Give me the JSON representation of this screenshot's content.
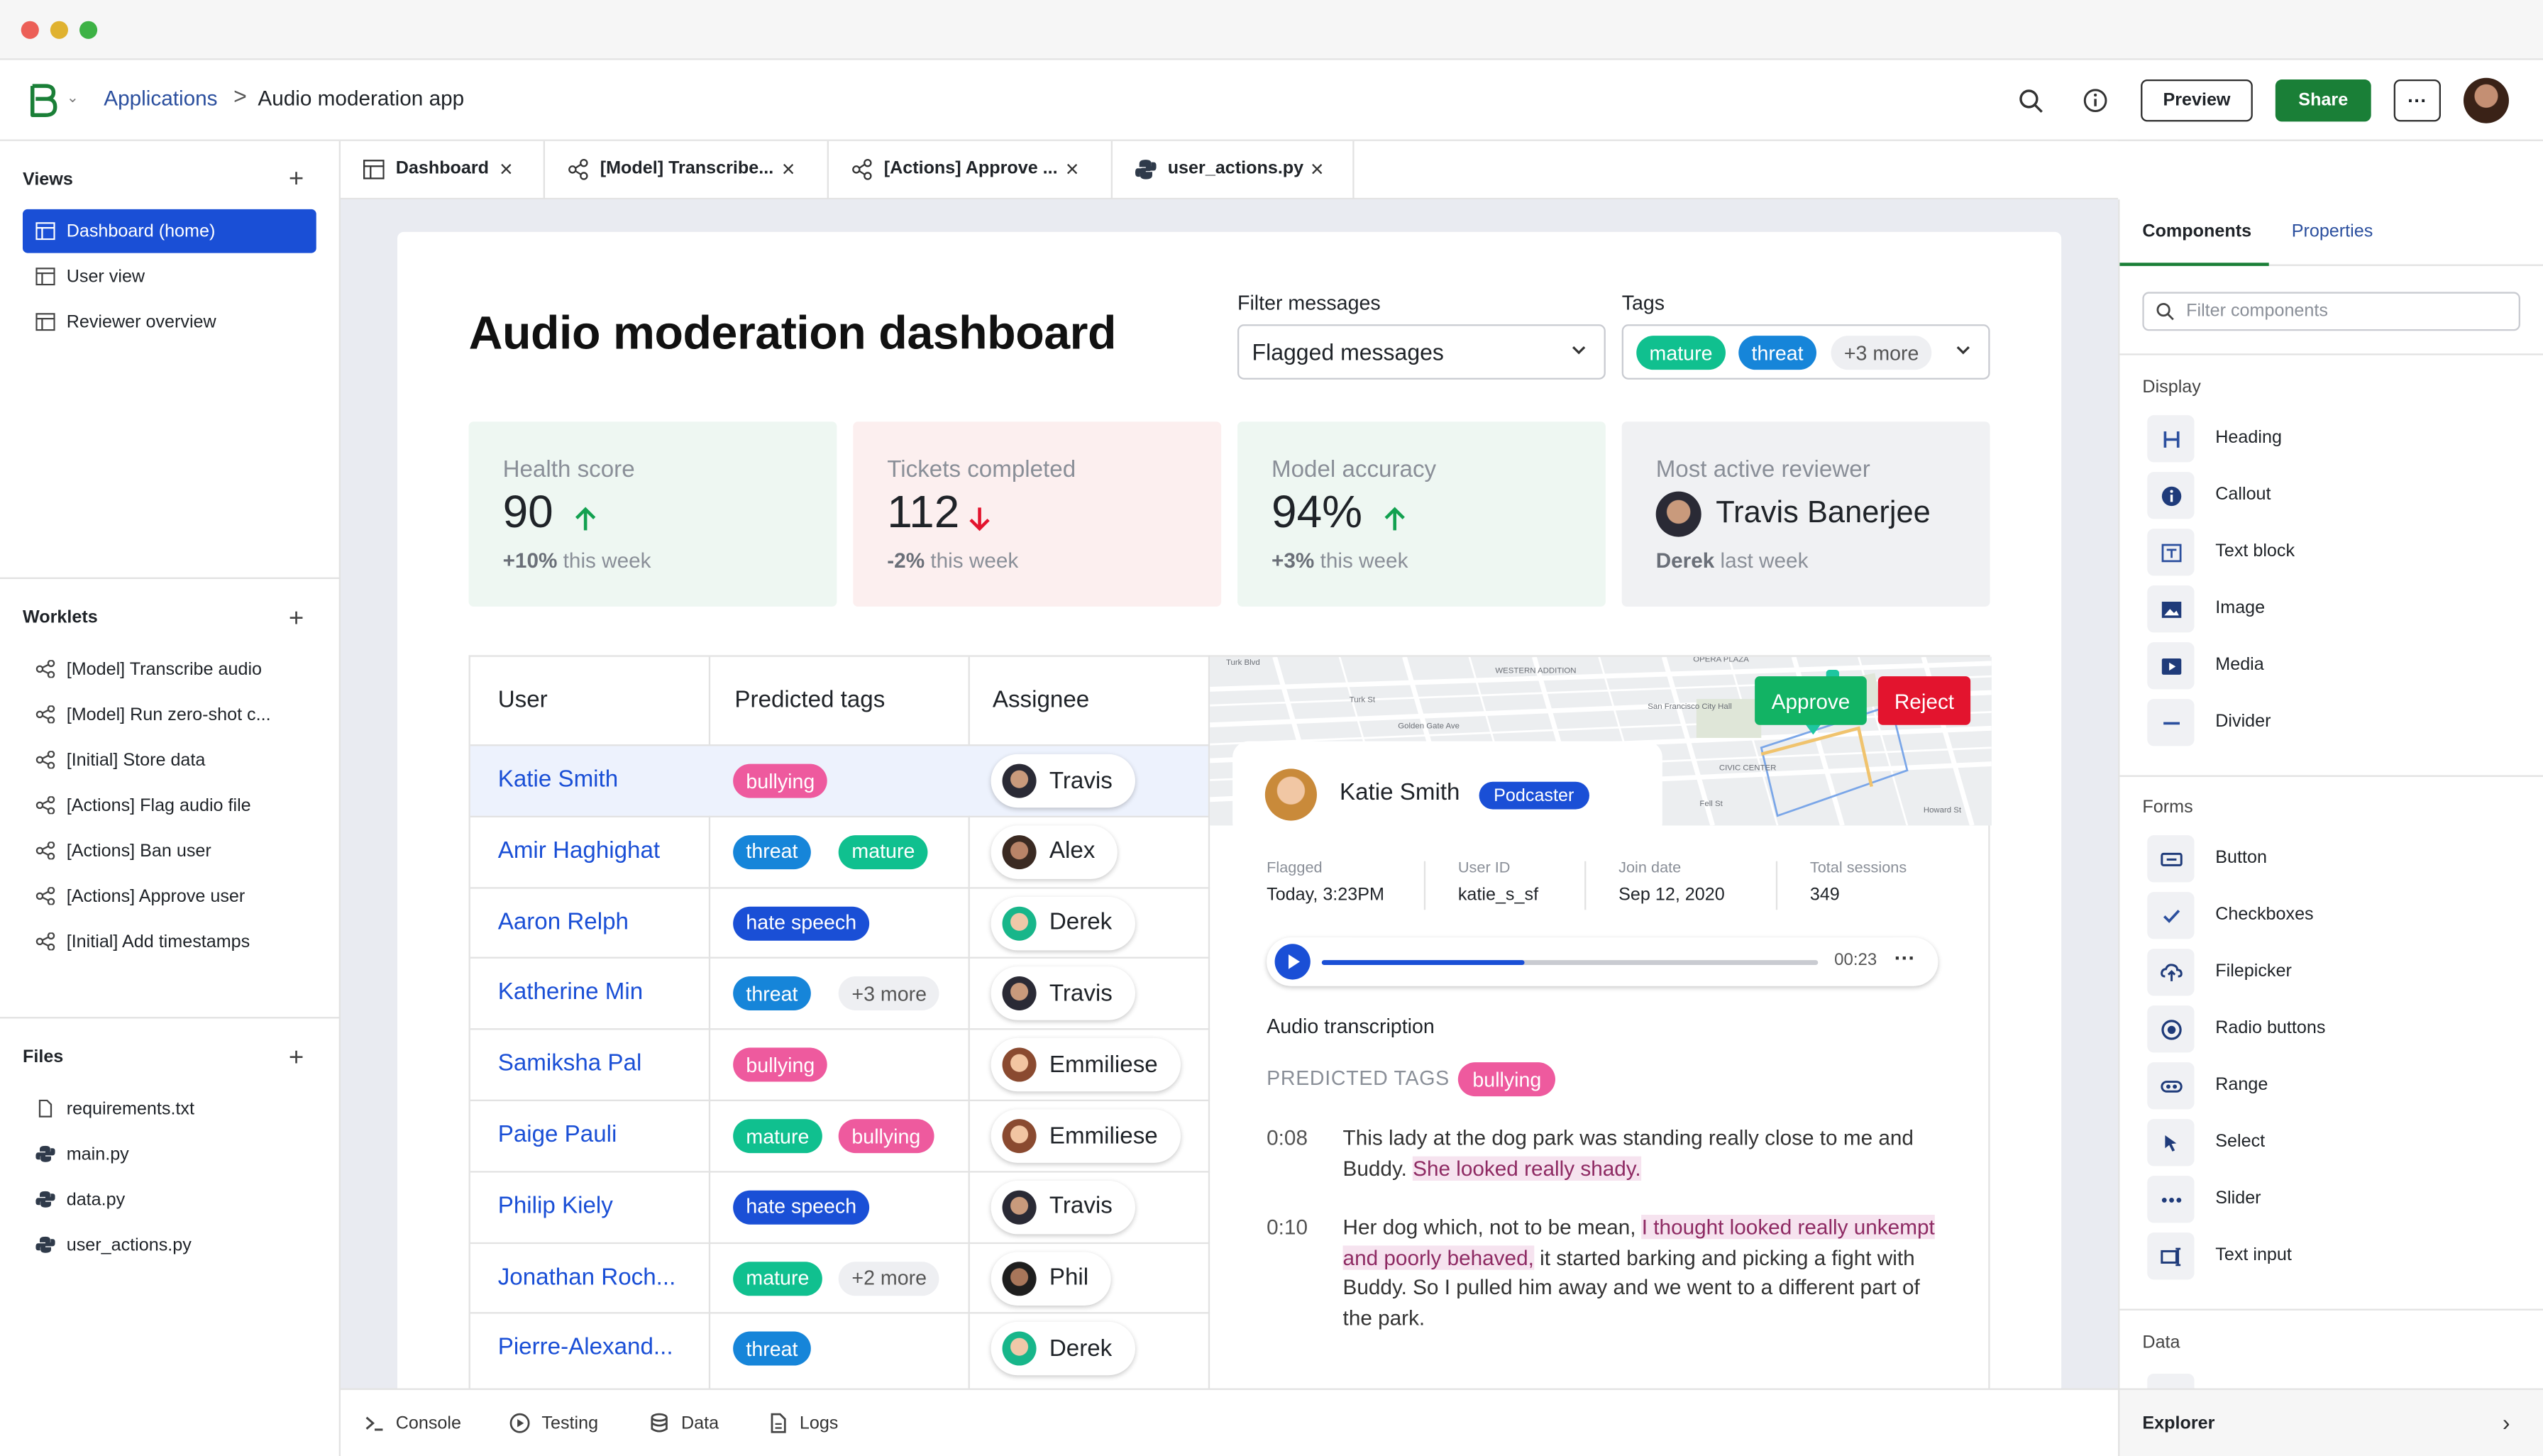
{
  "header": {
    "breadcrumb_root": "Applications",
    "breadcrumb_sep": ">",
    "breadcrumb_current": "Audio moderation app",
    "preview_label": "Preview",
    "share_label": "Share",
    "more_label": "···"
  },
  "sidebar": {
    "views_title": "Views",
    "views": [
      {
        "label": "Dashboard (home)",
        "active": true
      },
      {
        "label": "User view",
        "active": false
      },
      {
        "label": "Reviewer overview",
        "active": false
      }
    ],
    "worklets_title": "Worklets",
    "worklets": [
      "[Model] Transcribe audio",
      "[Model] Run zero-shot c...",
      "[Initial] Store data",
      "[Actions] Flag audio file",
      "[Actions] Ban user",
      "[Actions] Approve user",
      "[Initial] Add timestamps"
    ],
    "files_title": "Files",
    "files": [
      {
        "label": "requirements.txt",
        "icon": "file-icon"
      },
      {
        "label": "main.py",
        "icon": "python-icon"
      },
      {
        "label": "data.py",
        "icon": "python-icon"
      },
      {
        "label": "user_actions.py",
        "icon": "python-icon"
      }
    ]
  },
  "tabs": [
    {
      "label": "Dashboard",
      "icon": "layout-icon"
    },
    {
      "label": "[Model] Transcribe...",
      "icon": "worklet-icon"
    },
    {
      "label": "[Actions] Approve ...",
      "icon": "worklet-icon"
    },
    {
      "label": "user_actions.py",
      "icon": "python-icon"
    }
  ],
  "dashboard": {
    "title": "Audio moderation dashboard",
    "filter_label": "Filter messages",
    "filter_value": "Flagged messages",
    "tags_label": "Tags",
    "tags_selected": [
      "mature",
      "threat"
    ],
    "tags_more": "+3 more",
    "stats": [
      {
        "label": "Health score",
        "value": "90",
        "trend": "up",
        "delta": "+10%",
        "delta_suffix": " this week",
        "bg": "#eef7f2"
      },
      {
        "label": "Tickets completed",
        "value": "112",
        "trend": "down",
        "delta": "-2%",
        "delta_suffix": " this week",
        "bg": "#fcefef"
      },
      {
        "label": "Model accuracy",
        "value": "94%",
        "trend": "up",
        "delta": "+3%",
        "delta_suffix": " this week",
        "bg": "#eef7f2"
      },
      {
        "label": "Most active reviewer",
        "value": "Travis Banerjee",
        "delta": "Derek",
        "delta_suffix": " last week",
        "bg": "#f0f1f3"
      }
    ],
    "table": {
      "columns": [
        "User",
        "Predicted tags",
        "Assignee"
      ],
      "rows": [
        {
          "user": "Katie Smith",
          "tags": [
            "bullying"
          ],
          "assignee": "Travis"
        },
        {
          "user": "Amir Haghighat",
          "tags": [
            "threat",
            "mature"
          ],
          "assignee": "Alex"
        },
        {
          "user": "Aaron Relph",
          "tags": [
            "hate speech"
          ],
          "assignee": "Derek"
        },
        {
          "user": "Katherine Min",
          "tags": [
            "threat",
            "+3 more"
          ],
          "assignee": "Travis"
        },
        {
          "user": "Samiksha Pal",
          "tags": [
            "bullying"
          ],
          "assignee": "Emmiliese"
        },
        {
          "user": "Paige Pauli",
          "tags": [
            "mature",
            "bullying"
          ],
          "assignee": "Emmiliese"
        },
        {
          "user": "Philip Kiely",
          "tags": [
            "hate speech"
          ],
          "assignee": "Travis"
        },
        {
          "user": "Jonathan Roch...",
          "tags": [
            "mature",
            "+2 more"
          ],
          "assignee": "Phil"
        },
        {
          "user": "Pierre-Alexand...",
          "tags": [
            "threat"
          ],
          "assignee": "Derek"
        }
      ]
    },
    "detail": {
      "approve_label": "Approve",
      "reject_label": "Reject",
      "name": "Katie Smith",
      "badge": "Podcaster",
      "meta": [
        {
          "label": "Flagged",
          "value": "Today, 3:23PM"
        },
        {
          "label": "User ID",
          "value": "katie_s_sf"
        },
        {
          "label": "Join date",
          "value": "Sep 12, 2020"
        },
        {
          "label": "Total sessions",
          "value": "349"
        }
      ],
      "player": {
        "time": "00:23",
        "progress": 0.41
      },
      "transcription_title": "Audio transcription",
      "predicted_tags_label": "PREDICTED TAGS",
      "predicted_tag": "bullying",
      "transcript": [
        {
          "time": "0:08",
          "text": "This lady at the dog park was standing really close to me and Buddy. ",
          "highlight": "She looked really shady.",
          "after": ""
        },
        {
          "time": "0:10",
          "text": "Her dog which, not to be mean, ",
          "highlight": "I thought looked really unkempt and poorly behaved,",
          "after": " it started barking and picking a fight with Buddy. So I pulled him away and we went to a different part of the park."
        }
      ],
      "map_labels": [
        "WESTERN ADDITION",
        "Turk St",
        "Golden Gate Ave",
        "OPERA PLAZA",
        "CIVIC CENTER",
        "San Francisco City Hall",
        "Turk Blvd",
        "Fell St",
        "Howard St"
      ]
    }
  },
  "right_panel": {
    "tab_components": "Components",
    "tab_properties": "Properties",
    "search_placeholder": "Filter components",
    "display_title": "Display",
    "display_items": [
      {
        "label": "Heading",
        "icon": "heading-icon"
      },
      {
        "label": "Callout",
        "icon": "info-icon"
      },
      {
        "label": "Text block",
        "icon": "text-block-icon"
      },
      {
        "label": "Image",
        "icon": "image-icon"
      },
      {
        "label": "Media",
        "icon": "play-icon"
      },
      {
        "label": "Divider",
        "icon": "divider-icon"
      }
    ],
    "forms_title": "Forms",
    "forms_items": [
      {
        "label": "Button",
        "icon": "button-icon"
      },
      {
        "label": "Checkboxes",
        "icon": "check-icon"
      },
      {
        "label": "Filepicker",
        "icon": "upload-icon"
      },
      {
        "label": "Radio buttons",
        "icon": "radio-icon"
      },
      {
        "label": "Range",
        "icon": "range-icon"
      },
      {
        "label": "Select",
        "icon": "cursor-icon"
      },
      {
        "label": "Slider",
        "icon": "slider-icon"
      },
      {
        "label": "Text input",
        "icon": "text-input-icon"
      }
    ],
    "data_title": "Data"
  },
  "bottom": {
    "items": [
      {
        "label": "Console",
        "icon": "terminal-icon"
      },
      {
        "label": "Testing",
        "icon": "play-circle-icon"
      },
      {
        "label": "Data",
        "icon": "database-icon"
      },
      {
        "label": "Logs",
        "icon": "document-icon"
      }
    ],
    "explorer_label": "Explorer"
  },
  "colors": {
    "accent": "#1a4fd6",
    "share": "#1a7f37",
    "approve": "#12b364",
    "reject": "#e3142e",
    "bullying": "#ee5a9e",
    "threat": "#1685d9",
    "mature": "#10c08f",
    "hate_speech": "#1a4fd6",
    "trend_up": "#12a150",
    "trend_down": "#e3142e"
  }
}
